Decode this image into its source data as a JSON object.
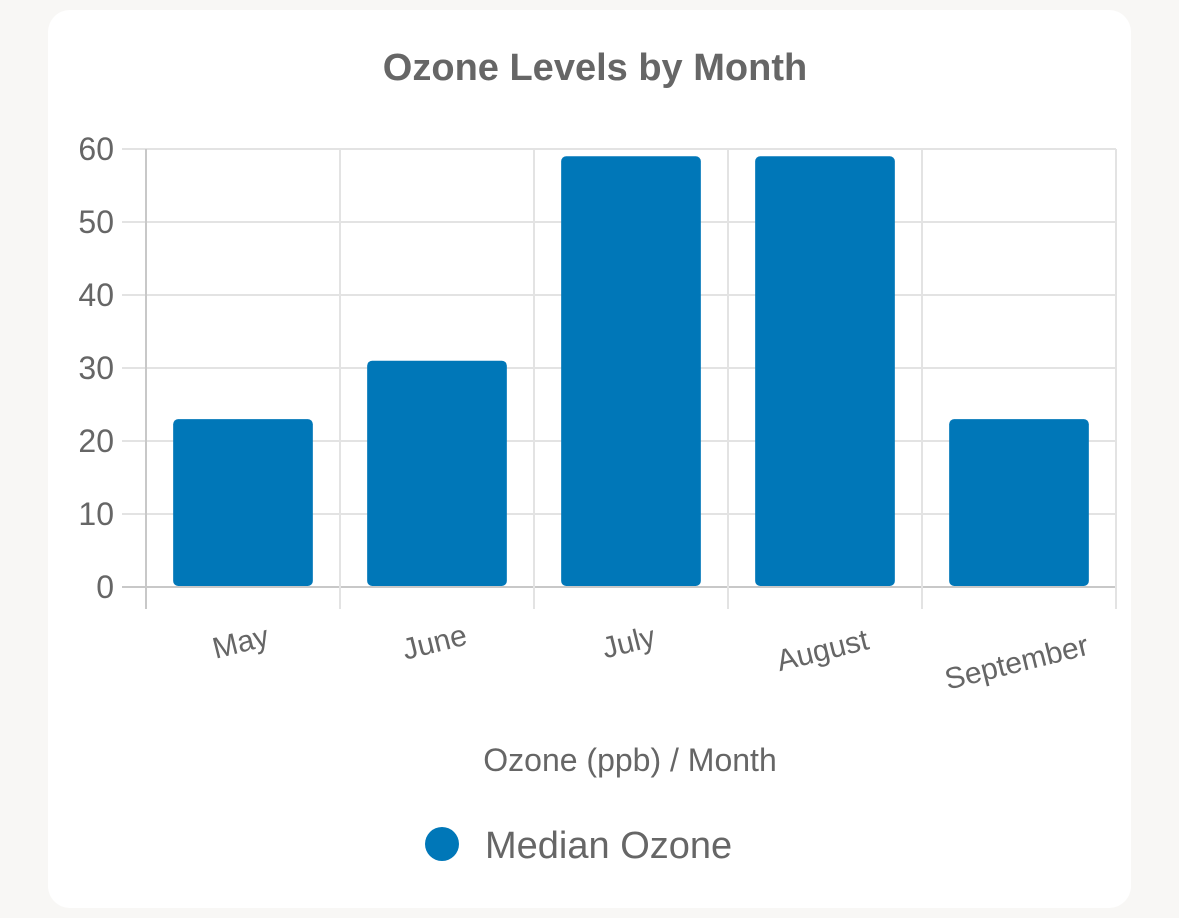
{
  "chart_data": {
    "type": "bar",
    "title": "Ozone Levels by Month",
    "xlabel": "Ozone (ppb) / Month",
    "ylabel": "",
    "categories": [
      "May",
      "June",
      "July",
      "August",
      "September"
    ],
    "series": [
      {
        "name": "Median Ozone",
        "values": [
          23,
          31,
          59,
          59,
          23
        ]
      }
    ],
    "ylim": [
      0,
      60
    ],
    "yticks": [
      "0",
      "10",
      "20",
      "30",
      "40",
      "50",
      "60"
    ],
    "grid": true,
    "legend_position": "bottom",
    "colors": {
      "bar": "#0077b8",
      "grid": "#e3e3e3",
      "axis": "#c8c8c8",
      "text": "#666666"
    }
  }
}
